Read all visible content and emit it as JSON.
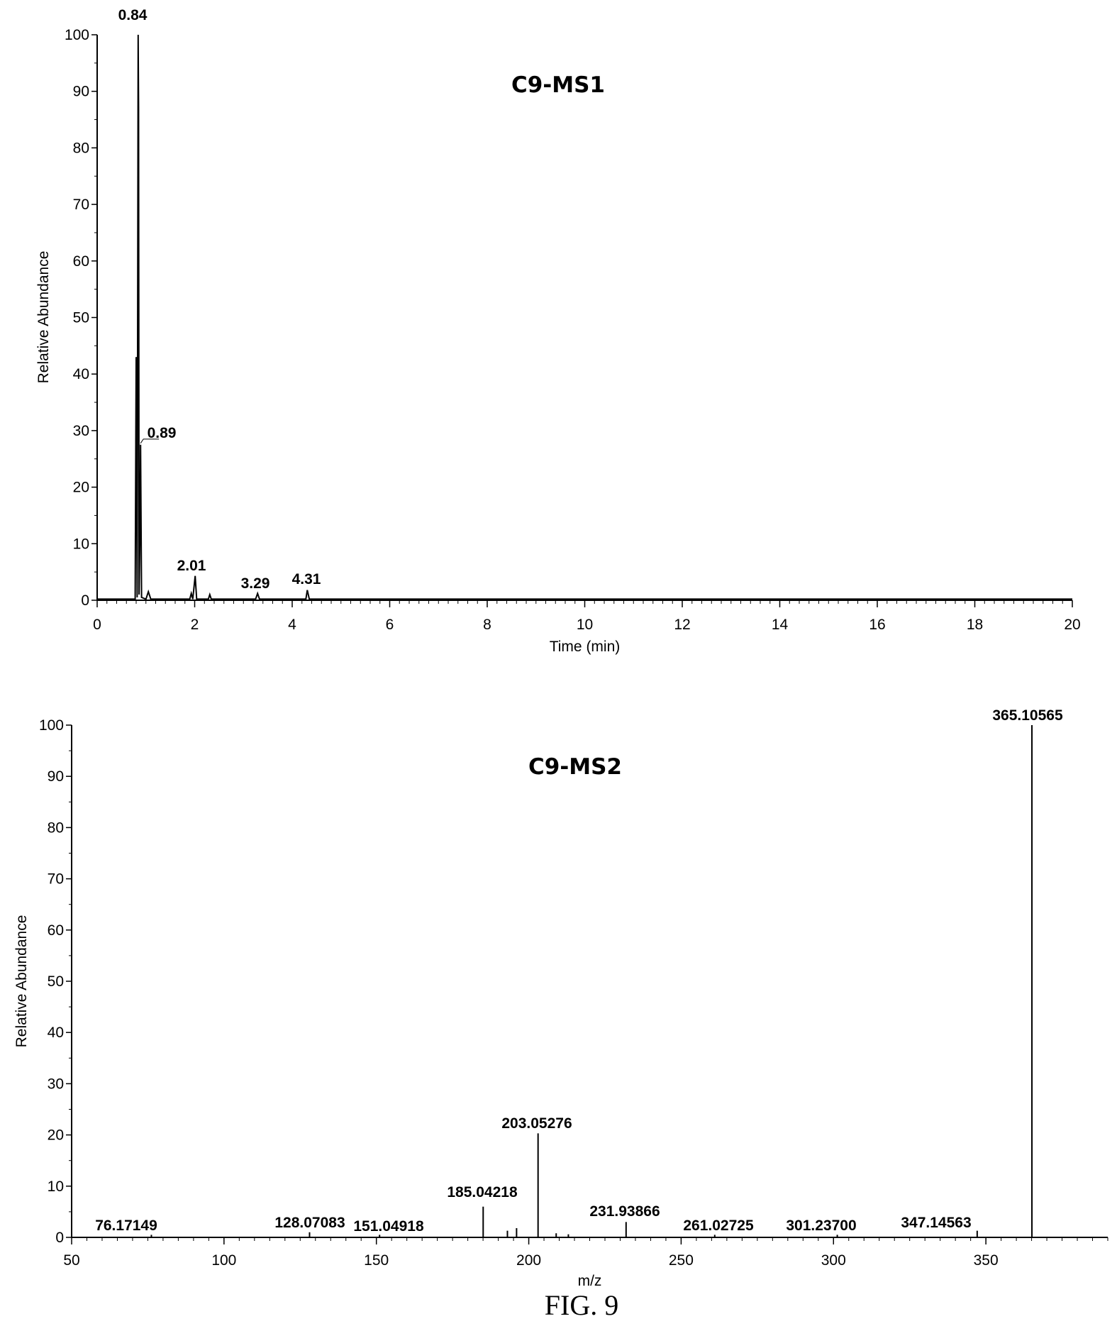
{
  "figure_caption": "FIG. 9",
  "chart_data": [
    {
      "type": "line",
      "title": "C9-MS1",
      "xlabel": "Time (min)",
      "ylabel": "Relative Abundance",
      "xlim": [
        0,
        20
      ],
      "ylim": [
        0,
        100
      ],
      "x_ticks": [
        0,
        2,
        4,
        6,
        8,
        10,
        12,
        14,
        16,
        18,
        20
      ],
      "y_ticks": [
        0,
        10,
        20,
        30,
        40,
        50,
        60,
        70,
        80,
        90,
        100
      ],
      "points": [
        [
          0,
          0.2
        ],
        [
          0.78,
          0.2
        ],
        [
          0.8,
          43
        ],
        [
          0.82,
          0.5
        ],
        [
          0.84,
          100
        ],
        [
          0.85,
          87
        ],
        [
          0.86,
          1
        ],
        [
          0.88,
          13.5
        ],
        [
          0.89,
          27.5
        ],
        [
          0.91,
          0.5
        ],
        [
          1.0,
          0.2
        ],
        [
          1.05,
          1.5
        ],
        [
          1.1,
          0.2
        ],
        [
          1.9,
          0.2
        ],
        [
          1.93,
          1.2
        ],
        [
          1.96,
          0.2
        ],
        [
          2.01,
          4.3
        ],
        [
          2.04,
          0.2
        ],
        [
          2.28,
          0.2
        ],
        [
          2.31,
          1.0
        ],
        [
          2.34,
          0.2
        ],
        [
          3.25,
          0.2
        ],
        [
          3.29,
          1.2
        ],
        [
          3.33,
          0.2
        ],
        [
          4.28,
          0.2
        ],
        [
          4.31,
          1.8
        ],
        [
          4.35,
          0.2
        ],
        [
          20,
          0.2
        ]
      ],
      "peaks": [
        {
          "x": 0.84,
          "y": 100,
          "label": "0.84"
        },
        {
          "x": 0.89,
          "y": 27.5,
          "label": "0.89"
        },
        {
          "x": 2.01,
          "y": 4.3,
          "label": "2.01"
        },
        {
          "x": 3.29,
          "y": 1.2,
          "label": "3.29"
        },
        {
          "x": 4.31,
          "y": 1.8,
          "label": "4.31"
        }
      ]
    },
    {
      "type": "bar",
      "title": "C9-MS2",
      "xlabel": "m/z",
      "ylabel": "Relative Abundance",
      "xlim": [
        50,
        390
      ],
      "ylim": [
        0,
        100
      ],
      "x_ticks": [
        50,
        100,
        150,
        200,
        250,
        300,
        350
      ],
      "y_ticks": [
        0,
        10,
        20,
        30,
        40,
        50,
        60,
        70,
        80,
        90,
        100
      ],
      "sticks": [
        [
          76.17149,
          0.5
        ],
        [
          128.07083,
          1.0
        ],
        [
          151.04918,
          0.5
        ],
        [
          185.04218,
          6.0
        ],
        [
          193.0,
          1.3
        ],
        [
          196.0,
          1.8
        ],
        [
          203.05276,
          20.3
        ],
        [
          209.0,
          0.8
        ],
        [
          213.0,
          0.6
        ],
        [
          231.93866,
          3.0
        ],
        [
          261.02725,
          0.5
        ],
        [
          301.237,
          0.5
        ],
        [
          347.14563,
          1.3
        ],
        [
          365.10565,
          100
        ]
      ],
      "peaks": [
        {
          "x": 76.17149,
          "y": 0.5,
          "label": "76.17149"
        },
        {
          "x": 128.07083,
          "y": 1.0,
          "label": "128.07083"
        },
        {
          "x": 151.04918,
          "y": 0.5,
          "label": "151.04918"
        },
        {
          "x": 185.04218,
          "y": 6.0,
          "label": "185.04218"
        },
        {
          "x": 203.05276,
          "y": 20.3,
          "label": "203.05276"
        },
        {
          "x": 231.93866,
          "y": 3.0,
          "label": "231.93866"
        },
        {
          "x": 261.02725,
          "y": 0.5,
          "label": "261.02725"
        },
        {
          "x": 301.237,
          "y": 0.5,
          "label": "301.23700"
        },
        {
          "x": 347.14563,
          "y": 1.3,
          "label": "347.14563"
        },
        {
          "x": 365.10565,
          "y": 100,
          "label": "365.10565"
        }
      ]
    }
  ]
}
